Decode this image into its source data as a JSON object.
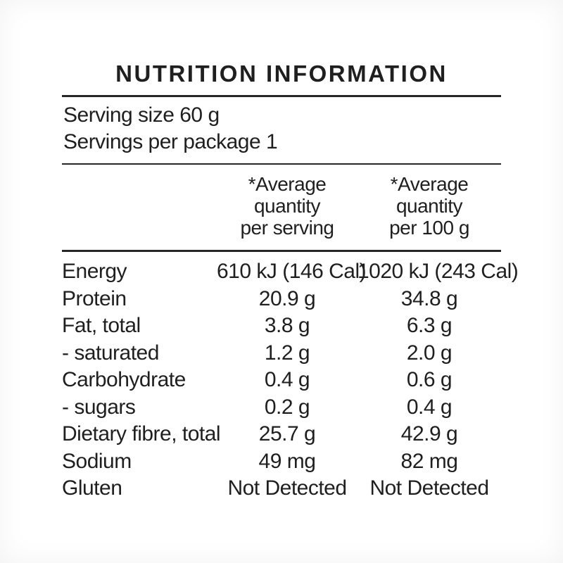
{
  "label": {
    "title": "NUTRITION INFORMATION",
    "serving_info": {
      "serving_size": "Serving size 60 g",
      "servings_per_package": "Servings per package 1"
    },
    "columns": [
      {
        "header": "*Average\nquantity\nper serving"
      },
      {
        "header": "*Average\nquantity\nper 100 g"
      }
    ],
    "rows": [
      {
        "nutrient": "Energy",
        "per_serving": "610 kJ (146 Cal)",
        "per_100g": "1020 kJ (243 Cal)"
      },
      {
        "nutrient": "Protein",
        "per_serving": "20.9 g",
        "per_100g": "34.8 g"
      },
      {
        "nutrient": "Fat, total",
        "per_serving": "3.8 g",
        "per_100g": "6.3 g"
      },
      {
        "nutrient": "- saturated",
        "per_serving": "1.2 g",
        "per_100g": "2.0 g"
      },
      {
        "nutrient": "Carbohydrate",
        "per_serving": "0.4 g",
        "per_100g": "0.6 g"
      },
      {
        "nutrient": "- sugars",
        "per_serving": "0.2 g",
        "per_100g": "0.4 g"
      },
      {
        "nutrient": "Dietary fibre, total",
        "per_serving": "25.7 g",
        "per_100g": "42.9 g"
      },
      {
        "nutrient": "Sodium",
        "per_serving": "49 mg",
        "per_100g": "82 mg"
      },
      {
        "nutrient": "Gluten",
        "per_serving": "Not Detected",
        "per_100g": "Not Detected"
      }
    ],
    "colors": {
      "text": "#1f1f1f",
      "rule": "#262626",
      "background": "#ffffff"
    }
  }
}
